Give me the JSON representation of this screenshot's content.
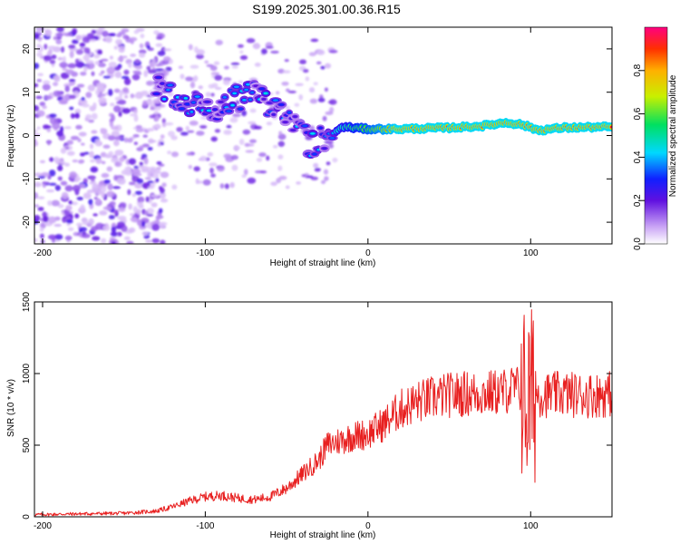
{
  "title": "S199.2025.301.00.36.R15",
  "chart_data": [
    {
      "type": "heatmap",
      "name": "spectrogram",
      "xlabel": "Height of straight line (km)",
      "ylabel": "Frequency (Hz)",
      "xlim": [
        -205,
        150
      ],
      "ylim": [
        -25,
        25
      ],
      "xticks": [
        -200,
        -100,
        0,
        100
      ],
      "yticks": [
        -20,
        -10,
        0,
        10,
        20
      ],
      "colorbar": {
        "label": "Normalized spectral amplitude",
        "range": [
          0,
          1
        ],
        "ticks": [
          "0.0",
          "0.2",
          "0.4",
          "0.6",
          "0.8"
        ]
      },
      "ridge": [
        {
          "x": -130,
          "y": 11
        },
        {
          "x": -110,
          "y": 8
        },
        {
          "x": -90,
          "y": 6
        },
        {
          "x": -75,
          "y": 10
        },
        {
          "x": -60,
          "y": 7
        },
        {
          "x": -45,
          "y": 2
        },
        {
          "x": -35,
          "y": -2
        },
        {
          "x": -25,
          "y": 0
        },
        {
          "x": -15,
          "y": 2
        },
        {
          "x": 0,
          "y": 1.5
        },
        {
          "x": 20,
          "y": 1.5
        },
        {
          "x": 50,
          "y": 1.8
        },
        {
          "x": 70,
          "y": 2.2
        },
        {
          "x": 85,
          "y": 3
        },
        {
          "x": 95,
          "y": 2.5
        },
        {
          "x": 105,
          "y": 1.2
        },
        {
          "x": 120,
          "y": 1.8
        },
        {
          "x": 150,
          "y": 2
        }
      ]
    },
    {
      "type": "line",
      "name": "snr",
      "xlabel": "Height of straight line (km)",
      "ylabel": "SNR (10 * v/v)",
      "xlim": [
        -205,
        150
      ],
      "ylim": [
        0,
        1500
      ],
      "xticks": [
        -200,
        -100,
        0,
        100
      ],
      "yticks": [
        0,
        500,
        1000,
        1500
      ],
      "color": "#e82020",
      "x": [
        -205,
        -180,
        -150,
        -130,
        -120,
        -110,
        -100,
        -90,
        -80,
        -70,
        -60,
        -50,
        -40,
        -30,
        -25,
        -20,
        -10,
        0,
        10,
        20,
        30,
        40,
        50,
        60,
        70,
        80,
        85,
        90,
        95,
        97,
        100,
        103,
        110,
        120,
        130,
        140,
        150
      ],
      "y": [
        15,
        20,
        25,
        40,
        70,
        110,
        140,
        150,
        130,
        120,
        140,
        200,
        300,
        400,
        500,
        520,
        560,
        580,
        650,
        750,
        800,
        830,
        850,
        860,
        860,
        870,
        880,
        900,
        880,
        800,
        820,
        860,
        850,
        860,
        850,
        850,
        860
      ]
    }
  ]
}
